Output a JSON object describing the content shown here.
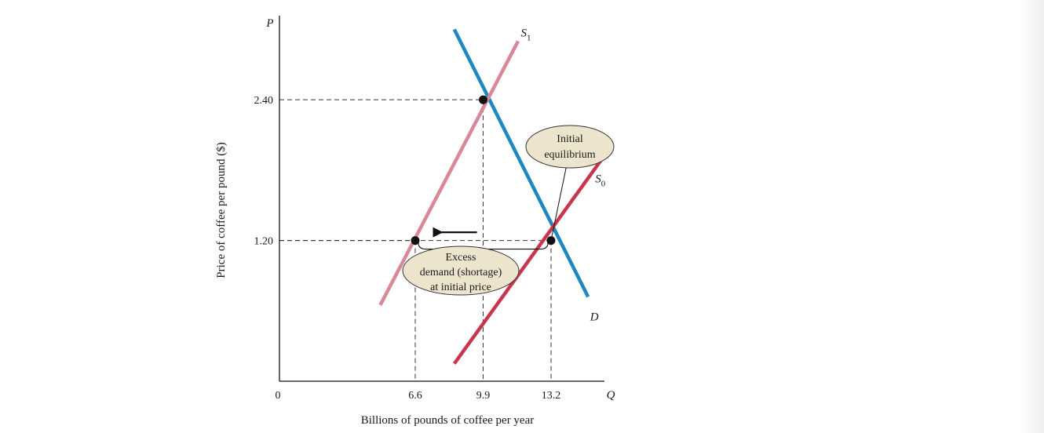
{
  "chart_data": {
    "type": "line",
    "title": "",
    "xlabel": "Billions of pounds of coffee per year",
    "ylabel": "Price of coffee per pound ($)",
    "x_axis_symbol": "Q",
    "y_axis_symbol": "P",
    "origin_label": "0",
    "x_ticks": [
      {
        "value": 6.6,
        "label": "6.6"
      },
      {
        "value": 9.9,
        "label": "9.9"
      },
      {
        "value": 13.2,
        "label": "13.2"
      }
    ],
    "y_ticks": [
      {
        "value": 1.2,
        "label": "1.20"
      },
      {
        "value": 2.4,
        "label": "2.40"
      }
    ],
    "xlim": [
      0,
      16.1
    ],
    "ylim": [
      0,
      3.05
    ],
    "grid": false,
    "series": [
      {
        "name": "D",
        "color": "#1f87c4",
        "points": [
          {
            "x": 8.5,
            "y": 3.0
          },
          {
            "x": 15.0,
            "y": 0.72
          }
        ]
      },
      {
        "name": "S",
        "name_subscript": "0",
        "color": "#c8364e",
        "points": [
          {
            "x": 8.5,
            "y": 0.15
          },
          {
            "x": 15.9,
            "y": 1.95
          }
        ]
      },
      {
        "name": "S",
        "name_subscript": "1",
        "color": "#d98897",
        "points": [
          {
            "x": 4.9,
            "y": 0.65
          },
          {
            "x": 11.6,
            "y": 2.9
          }
        ]
      }
    ],
    "points": [
      {
        "x": 6.6,
        "y": 1.2
      },
      {
        "x": 9.9,
        "y": 2.4
      },
      {
        "x": 13.2,
        "y": 1.2
      }
    ],
    "guides": [
      {
        "x": 6.6,
        "y": 1.2
      },
      {
        "x": 9.9,
        "y": 2.4
      },
      {
        "x": 13.2,
        "y": 1.2
      }
    ],
    "annotations": [
      {
        "id": "initial",
        "lines": [
          "Initial",
          "equilibrium"
        ],
        "points_to": {
          "x": 13.2,
          "y": 1.2
        }
      },
      {
        "id": "excess",
        "lines": [
          "Excess",
          "demand (shortage)",
          "at initial price"
        ],
        "brace_from": 6.6,
        "brace_to": 13.2,
        "brace_y": 1.2
      }
    ],
    "shift_arrow": {
      "direction": "left",
      "from_x": 9.6,
      "to_x": 7.7,
      "y": 1.27
    }
  }
}
